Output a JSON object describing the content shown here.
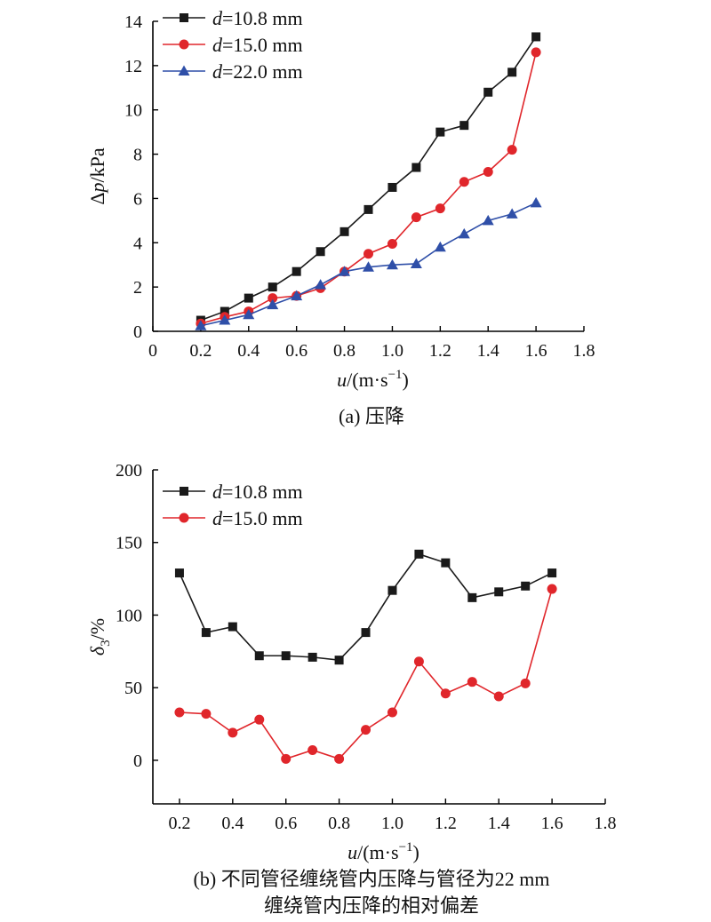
{
  "chart_data": [
    {
      "type": "line",
      "xlabel_var": "u",
      "xlabel_unit": "/(m·s",
      "xlabel_exp": "−1",
      "xlabel_close": ")",
      "ylabel_prefix": "Δ",
      "ylabel_var": "p",
      "ylabel_unit": "/kPa",
      "xlim": [
        0,
        1.8
      ],
      "ylim": [
        0,
        14
      ],
      "xticks": [
        "0",
        "0.2",
        "0.4",
        "0.6",
        "0.8",
        "1.0",
        "1.2",
        "1.4",
        "1.6",
        "1.8"
      ],
      "yticks": [
        "0",
        "2",
        "4",
        "6",
        "8",
        "10",
        "12",
        "14"
      ],
      "legend_position": "top-left",
      "grid": false,
      "caption": "(a) 压降",
      "series": [
        {
          "var": "d",
          "value": "=10.8 mm",
          "color": "#1a1a1a",
          "marker": "square",
          "x": [
            0.2,
            0.3,
            0.4,
            0.5,
            0.6,
            0.7,
            0.8,
            0.9,
            1.0,
            1.1,
            1.2,
            1.3,
            1.4,
            1.5,
            1.6
          ],
          "y": [
            0.5,
            0.9,
            1.5,
            2.0,
            2.7,
            3.6,
            4.5,
            5.5,
            6.5,
            7.4,
            9.0,
            9.3,
            10.8,
            11.7,
            13.3
          ]
        },
        {
          "var": "d",
          "value": "=15.0 mm",
          "color": "#e0262b",
          "marker": "circle",
          "x": [
            0.2,
            0.3,
            0.4,
            0.5,
            0.6,
            0.7,
            0.8,
            0.9,
            1.0,
            1.1,
            1.2,
            1.3,
            1.4,
            1.5,
            1.6
          ],
          "y": [
            0.35,
            0.65,
            0.9,
            1.5,
            1.6,
            1.95,
            2.7,
            3.5,
            3.95,
            5.15,
            5.55,
            6.75,
            7.2,
            8.2,
            12.6
          ]
        },
        {
          "var": "d",
          "value": "=22.0 mm",
          "color": "#2f4fa8",
          "marker": "triangle",
          "x": [
            0.2,
            0.3,
            0.4,
            0.5,
            0.6,
            0.7,
            0.8,
            0.9,
            1.0,
            1.1,
            1.2,
            1.3,
            1.4,
            1.5,
            1.6
          ],
          "y": [
            0.25,
            0.5,
            0.75,
            1.2,
            1.6,
            2.1,
            2.7,
            2.9,
            3.0,
            3.05,
            3.8,
            4.4,
            5.0,
            5.3,
            5.8
          ]
        }
      ]
    },
    {
      "type": "line",
      "xlabel_var": "u",
      "xlabel_unit": "/(m·s",
      "xlabel_exp": "−1",
      "xlabel_close": ")",
      "ylabel_var": "δ",
      "ylabel_sub": "3",
      "ylabel_unit": "/%",
      "xlim": [
        0.1,
        1.8
      ],
      "ylim": [
        -30,
        200
      ],
      "xticks": [
        "0.2",
        "0.4",
        "0.6",
        "0.8",
        "1.0",
        "1.2",
        "1.4",
        "1.6",
        "1.8"
      ],
      "yticks": [
        "0",
        "50",
        "100",
        "150",
        "200"
      ],
      "legend_position": "top-left",
      "grid": false,
      "caption": "(b) 不同管径缠绕管内压降与管径为22 mm",
      "caption_line2": "缠绕管内压降的相对偏差",
      "series": [
        {
          "var": "d",
          "value": "=10.8 mm",
          "color": "#1a1a1a",
          "marker": "square",
          "x": [
            0.2,
            0.3,
            0.4,
            0.5,
            0.6,
            0.7,
            0.8,
            0.9,
            1.0,
            1.1,
            1.2,
            1.3,
            1.4,
            1.5,
            1.6
          ],
          "y": [
            129,
            88,
            92,
            72,
            72,
            71,
            69,
            88,
            117,
            142,
            136,
            112,
            116,
            120,
            129
          ]
        },
        {
          "var": "d",
          "value": "=15.0 mm",
          "color": "#e0262b",
          "marker": "circle",
          "x": [
            0.2,
            0.3,
            0.4,
            0.5,
            0.6,
            0.7,
            0.8,
            0.9,
            1.0,
            1.1,
            1.2,
            1.3,
            1.4,
            1.5,
            1.6
          ],
          "y": [
            33,
            32,
            19,
            28,
            1,
            7,
            1,
            21,
            33,
            68,
            46,
            54,
            44,
            53,
            118
          ]
        }
      ]
    }
  ]
}
